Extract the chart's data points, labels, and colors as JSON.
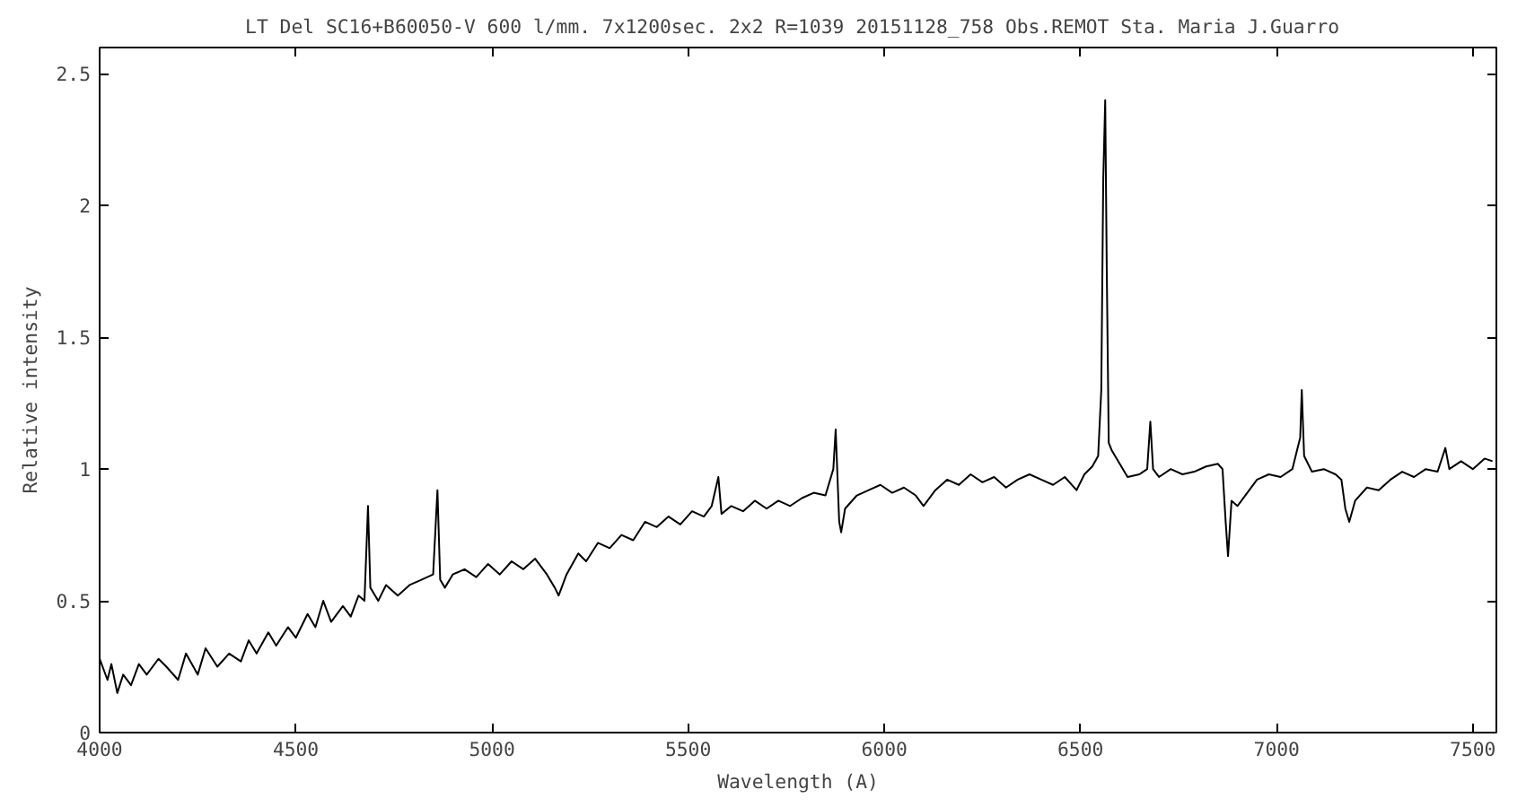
{
  "chart_data": {
    "type": "line",
    "title": "LT Del SC16+B60050-V 600 l/mm. 7x1200sec. 2x2 R=1039 20151128_758 Obs.REMOT Sta. Maria  J.Guarro",
    "xlabel": "Wavelength (A)",
    "ylabel": "Relative intensity",
    "grid": false,
    "marker": "none",
    "line_style": "solid",
    "xlim": [
      4000,
      7560
    ],
    "ylim": [
      0,
      2.6
    ],
    "xticks": [
      4000,
      4500,
      5000,
      5500,
      6000,
      6500,
      7000,
      7500
    ],
    "yticks": [
      0,
      0.5,
      1,
      1.5,
      2,
      2.5
    ],
    "series": [
      {
        "color": "#000000",
        "x": [
          4000,
          4020,
          4030,
          4045,
          4060,
          4080,
          4100,
          4120,
          4150,
          4170,
          4200,
          4220,
          4250,
          4270,
          4300,
          4330,
          4360,
          4380,
          4400,
          4430,
          4450,
          4480,
          4500,
          4530,
          4550,
          4570,
          4590,
          4620,
          4640,
          4660,
          4675,
          4684,
          4690,
          4710,
          4730,
          4760,
          4790,
          4820,
          4850,
          4861,
          4868,
          4880,
          4900,
          4930,
          4960,
          4990,
          5020,
          5050,
          5080,
          5110,
          5140,
          5160,
          5170,
          5190,
          5220,
          5240,
          5270,
          5300,
          5330,
          5360,
          5390,
          5420,
          5450,
          5480,
          5510,
          5540,
          5560,
          5577,
          5585,
          5610,
          5640,
          5670,
          5700,
          5730,
          5760,
          5790,
          5820,
          5850,
          5870,
          5876,
          5885,
          5890,
          5900,
          5930,
          5960,
          5990,
          6020,
          6050,
          6080,
          6100,
          6130,
          6160,
          6190,
          6220,
          6250,
          6280,
          6310,
          6340,
          6370,
          6400,
          6430,
          6460,
          6490,
          6510,
          6530,
          6545,
          6553,
          6558,
          6563,
          6567,
          6572,
          6580,
          6600,
          6620,
          6650,
          6670,
          6678,
          6685,
          6700,
          6730,
          6760,
          6790,
          6820,
          6850,
          6862,
          6870,
          6876,
          6885,
          6900,
          6920,
          6950,
          6980,
          7010,
          7040,
          7060,
          7064,
          7070,
          7090,
          7120,
          7150,
          7165,
          7175,
          7185,
          7200,
          7230,
          7260,
          7290,
          7320,
          7350,
          7380,
          7410,
          7430,
          7440,
          7470,
          7500,
          7530,
          7550
        ],
        "values": [
          0.28,
          0.2,
          0.26,
          0.15,
          0.22,
          0.18,
          0.26,
          0.22,
          0.28,
          0.25,
          0.2,
          0.3,
          0.22,
          0.32,
          0.25,
          0.3,
          0.27,
          0.35,
          0.3,
          0.38,
          0.33,
          0.4,
          0.36,
          0.45,
          0.4,
          0.5,
          0.42,
          0.48,
          0.44,
          0.52,
          0.5,
          0.86,
          0.55,
          0.5,
          0.56,
          0.52,
          0.56,
          0.58,
          0.6,
          0.92,
          0.58,
          0.55,
          0.6,
          0.62,
          0.59,
          0.64,
          0.6,
          0.65,
          0.62,
          0.66,
          0.6,
          0.55,
          0.52,
          0.6,
          0.68,
          0.65,
          0.72,
          0.7,
          0.75,
          0.73,
          0.8,
          0.78,
          0.82,
          0.79,
          0.84,
          0.82,
          0.86,
          0.97,
          0.83,
          0.86,
          0.84,
          0.88,
          0.85,
          0.88,
          0.86,
          0.89,
          0.91,
          0.9,
          1.0,
          1.15,
          0.8,
          0.76,
          0.85,
          0.9,
          0.92,
          0.94,
          0.91,
          0.93,
          0.9,
          0.86,
          0.92,
          0.96,
          0.94,
          0.98,
          0.95,
          0.97,
          0.93,
          0.96,
          0.98,
          0.96,
          0.94,
          0.97,
          0.92,
          0.98,
          1.01,
          1.05,
          1.3,
          2.1,
          2.4,
          1.75,
          1.1,
          1.07,
          1.02,
          0.97,
          0.98,
          1.0,
          1.18,
          1.0,
          0.97,
          1.0,
          0.98,
          0.99,
          1.01,
          1.02,
          1.0,
          0.8,
          0.67,
          0.88,
          0.86,
          0.9,
          0.96,
          0.98,
          0.97,
          1.0,
          1.12,
          1.3,
          1.05,
          0.99,
          1.0,
          0.98,
          0.96,
          0.85,
          0.8,
          0.88,
          0.93,
          0.92,
          0.96,
          0.99,
          0.97,
          1.0,
          0.99,
          1.08,
          1.0,
          1.03,
          1.0,
          1.04,
          1.03
        ]
      }
    ]
  }
}
